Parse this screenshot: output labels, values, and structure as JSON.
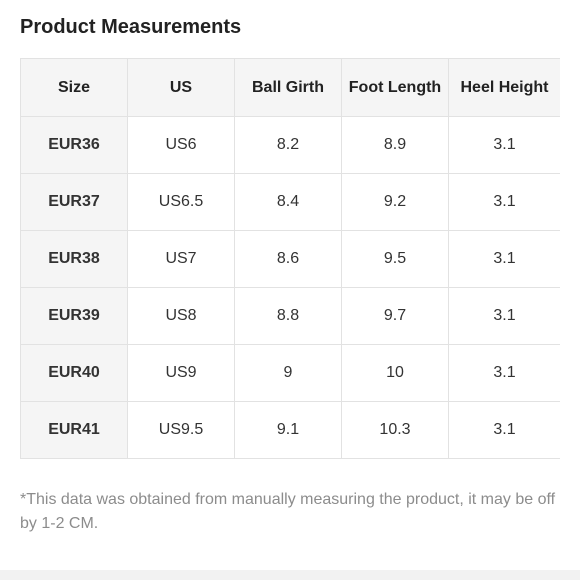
{
  "title": "Product Measurements",
  "table": {
    "headers": [
      "Size",
      "US",
      "Ball Girth",
      "Foot Length",
      "Heel Height"
    ],
    "rows": [
      [
        "EUR36",
        "US6",
        "8.2",
        "8.9",
        "3.1"
      ],
      [
        "EUR37",
        "US6.5",
        "8.4",
        "9.2",
        "3.1"
      ],
      [
        "EUR38",
        "US7",
        "8.6",
        "9.5",
        "3.1"
      ],
      [
        "EUR39",
        "US8",
        "8.8",
        "9.7",
        "3.1"
      ],
      [
        "EUR40",
        "US9",
        "9",
        "10",
        "3.1"
      ],
      [
        "EUR41",
        "US9.5",
        "9.1",
        "10.3",
        "3.1"
      ]
    ]
  },
  "note": "*This data was obtained from manually measuring the product, it may be off by 1-2 CM.",
  "colors": {
    "header_bg": "#f5f5f5",
    "border": "#e2e2e2",
    "note_text": "#8c8c8c"
  }
}
